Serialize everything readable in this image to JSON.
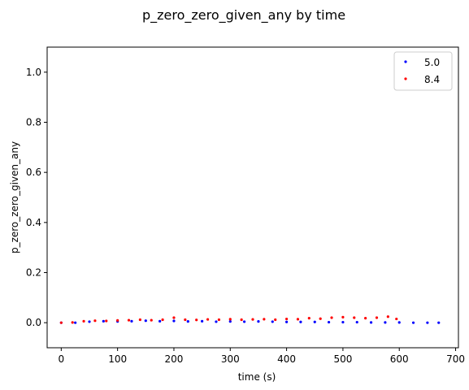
{
  "chart_data": {
    "type": "scatter",
    "title": "p_zero_zero_given_any by time",
    "xlabel": "time (s)",
    "ylabel": "p_zero_zero_given_any",
    "xlim": [
      -25,
      705
    ],
    "ylim": [
      -0.1,
      1.1
    ],
    "xticks": [
      0,
      100,
      200,
      300,
      400,
      500,
      600,
      700
    ],
    "yticks": [
      0.0,
      0.2,
      0.4,
      0.6,
      0.8,
      1.0
    ],
    "xtick_labels": [
      "0",
      "100",
      "200",
      "300",
      "400",
      "500",
      "600",
      "700"
    ],
    "ytick_labels": [
      "0.0",
      "0.2",
      "0.4",
      "0.6",
      "0.8",
      "1.0"
    ],
    "grid": false,
    "legend_position": "top-right",
    "series": [
      {
        "name": "5.0",
        "color": "#0000ff",
        "x": [
          0,
          25,
          50,
          75,
          100,
          125,
          150,
          175,
          200,
          225,
          250,
          275,
          300,
          325,
          350,
          375,
          400,
          425,
          450,
          475,
          500,
          525,
          550,
          575,
          600,
          625,
          650,
          670
        ],
        "y": [
          0,
          0,
          0.004,
          0.006,
          0.005,
          0.006,
          0.008,
          0.006,
          0.007,
          0.005,
          0.006,
          0.004,
          0.005,
          0.004,
          0.005,
          0.004,
          0.003,
          0.003,
          0.003,
          0.002,
          0.002,
          0.002,
          0.001,
          0.001,
          0.001,
          0.0,
          0.0,
          0.0
        ]
      },
      {
        "name": "8.4",
        "color": "#ff0000",
        "x": [
          0,
          20,
          40,
          60,
          80,
          100,
          120,
          140,
          160,
          180,
          200,
          220,
          240,
          260,
          280,
          300,
          320,
          340,
          360,
          380,
          400,
          420,
          440,
          460,
          480,
          500,
          520,
          540,
          560,
          580,
          595
        ],
        "y": [
          0,
          0.001,
          0.006,
          0.008,
          0.007,
          0.009,
          0.01,
          0.012,
          0.01,
          0.012,
          0.02,
          0.012,
          0.011,
          0.013,
          0.012,
          0.014,
          0.012,
          0.013,
          0.014,
          0.012,
          0.015,
          0.014,
          0.018,
          0.016,
          0.02,
          0.022,
          0.02,
          0.018,
          0.02,
          0.024,
          0.015
        ]
      }
    ]
  }
}
